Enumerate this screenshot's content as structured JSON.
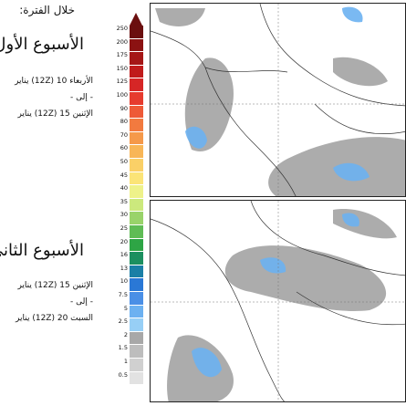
{
  "heading": "خلال الفترة:",
  "weeks": [
    {
      "title": "الأسبوع الأول",
      "from": "الأربعاء 10 (12Z) يناير",
      "sep": "- إلى -",
      "to": "الإثنين 15 (12Z) يناير"
    },
    {
      "title": "الأسبوع الثاني",
      "from": "الإثنين 15 (12Z) يناير",
      "sep": "- إلى -",
      "to": "السبت 20 (12Z) يناير"
    }
  ],
  "legend": {
    "ticks": [
      "250",
      "200",
      "175",
      "150",
      "125",
      "100",
      "90",
      "80",
      "70",
      "60",
      "50",
      "45",
      "40",
      "35",
      "30",
      "25",
      "20",
      "16",
      "13",
      "10",
      "7.5",
      "5",
      "2.5",
      "2",
      "1.5",
      "1",
      "0.5"
    ],
    "colors": [
      "#6b0f0f",
      "#8b1212",
      "#a51616",
      "#c01b1b",
      "#d62626",
      "#e63b2e",
      "#ee5a37",
      "#f27a3f",
      "#f5994a",
      "#f8b657",
      "#fad067",
      "#fbe477",
      "#eef28a",
      "#cce97d",
      "#99d36a",
      "#5fbc55",
      "#2ea545",
      "#1c8f5f",
      "#1a7fa6",
      "#2a78d6",
      "#4a8fe6",
      "#6cb1f1",
      "#97cff6",
      "#a8a8a8",
      "#bdbdbd",
      "#d0d0d0",
      "#e2e2e2"
    ]
  },
  "maps": [
    {
      "name": "week-1"
    },
    {
      "name": "week-2"
    }
  ]
}
